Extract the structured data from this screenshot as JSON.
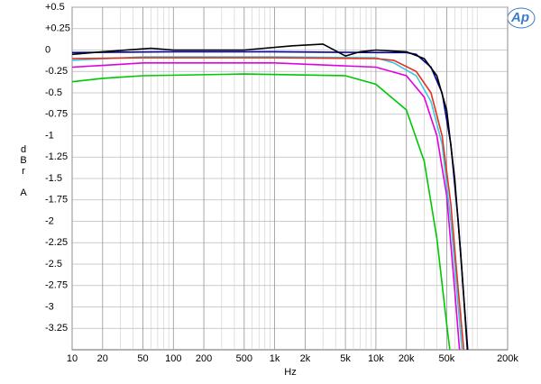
{
  "chart_data": {
    "type": "line",
    "logo": "Ap",
    "xlabel": "Hz",
    "ylabel": "dBr A",
    "xlog": true,
    "grid": true,
    "xlim": [
      10,
      200000
    ],
    "ylim": [
      -3.5,
      0.5
    ],
    "xticks": [
      10,
      20,
      50,
      100,
      200,
      500,
      {
        "value": 1000,
        "label": "1k"
      },
      {
        "value": 2000,
        "label": "2k"
      },
      {
        "value": 5000,
        "label": "5k"
      },
      {
        "value": 10000,
        "label": "10k"
      },
      {
        "value": 20000,
        "label": "20k"
      },
      {
        "value": 50000,
        "label": "50k"
      },
      {
        "value": 200000,
        "label": "200k"
      }
    ],
    "yticks": [
      {
        "value": 0.5,
        "label": "+0.5"
      },
      {
        "value": 0.25,
        "label": "+0.25"
      },
      0,
      -0.25,
      -0.5,
      -0.75,
      -1,
      -1.25,
      -1.5,
      -1.75,
      -2,
      -2.25,
      -2.5,
      -2.75,
      -3,
      -3.25
    ],
    "series": [
      {
        "color": "#00c800",
        "x": [
          10,
          20,
          50,
          500,
          5000,
          10000,
          20000,
          30000,
          40000,
          50000,
          55000
        ],
        "values": [
          -0.37,
          -0.33,
          -0.3,
          -0.28,
          -0.3,
          -0.4,
          -0.7,
          -1.3,
          -2.2,
          -3.2,
          -3.6
        ]
      },
      {
        "color": "#e000e0",
        "x": [
          10,
          20,
          50,
          1000,
          10000,
          20000,
          30000,
          40000,
          50000,
          60000,
          68000
        ],
        "values": [
          -0.2,
          -0.18,
          -0.15,
          -0.15,
          -0.2,
          -0.3,
          -0.55,
          -1,
          -1.7,
          -2.8,
          -3.6
        ]
      },
      {
        "color": "#40c8e0",
        "x": [
          10,
          50,
          1000,
          10000,
          15000,
          25000,
          35000,
          45000,
          55000,
          65000,
          72000
        ],
        "values": [
          -0.12,
          -0.08,
          -0.08,
          -0.09,
          -0.15,
          -0.3,
          -0.6,
          -1.1,
          -2,
          -3,
          -3.6
        ]
      },
      {
        "color": "#e03020",
        "x": [
          10,
          50,
          1000,
          10000,
          15000,
          25000,
          35000,
          45000,
          55000,
          65000,
          75000
        ],
        "values": [
          -0.1,
          -0.09,
          -0.09,
          -0.1,
          -0.12,
          -0.25,
          -0.5,
          -1,
          -1.8,
          -2.8,
          -3.6
        ]
      },
      {
        "color": "#0000a0",
        "x": [
          10,
          100,
          1000,
          10000,
          20000,
          25000,
          35000,
          45000,
          55000,
          65000,
          75000,
          82000
        ],
        "values": [
          -0.03,
          -0.02,
          -0.02,
          -0.03,
          -0.03,
          -0.05,
          -0.2,
          -0.5,
          -1.1,
          -2,
          -3,
          -3.6
        ]
      },
      {
        "color": "#000000",
        "x": [
          10,
          20,
          60,
          100,
          500,
          1500,
          3000,
          5000,
          7000,
          10000,
          20000,
          30000,
          40000,
          50000,
          60000,
          70000,
          80000
        ],
        "values": [
          -0.05,
          -0.02,
          0.02,
          0,
          0,
          0.05,
          0.07,
          -0.07,
          -0.02,
          0,
          -0.02,
          -0.1,
          -0.3,
          -0.7,
          -1.5,
          -2.5,
          -3.5
        ]
      }
    ]
  }
}
